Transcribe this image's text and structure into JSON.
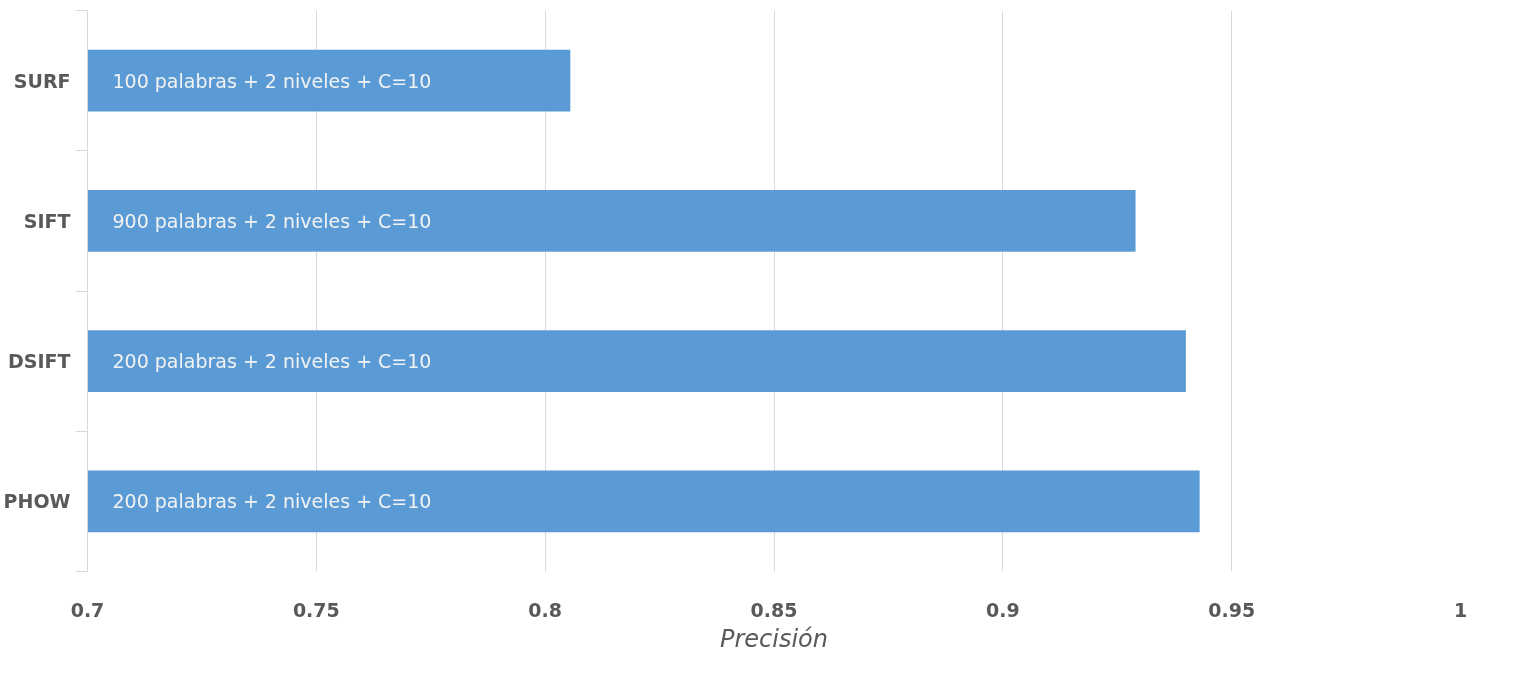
{
  "chart_data": {
    "type": "bar",
    "orientation": "horizontal",
    "xlabel": "Precisión",
    "categories": [
      "SURF",
      "SIFT",
      "DSIFT",
      "PHOW"
    ],
    "series": [
      {
        "color": "#5b9bd5",
        "values": [
          0.8055,
          0.929,
          0.94,
          0.943
        ]
      }
    ],
    "annotations": [
      "100 palabras + 2 niveles + C=10",
      "900 palabras + 2 niveles + C=10",
      "200 palabras + 2 niveles + C=10",
      "200 palabras + 2 niveles + C=10"
    ],
    "xlim": [
      0.7,
      1
    ],
    "xticks": [
      0.7,
      0.75,
      0.8,
      0.85,
      0.9,
      0.95,
      1
    ],
    "grid": "x"
  }
}
